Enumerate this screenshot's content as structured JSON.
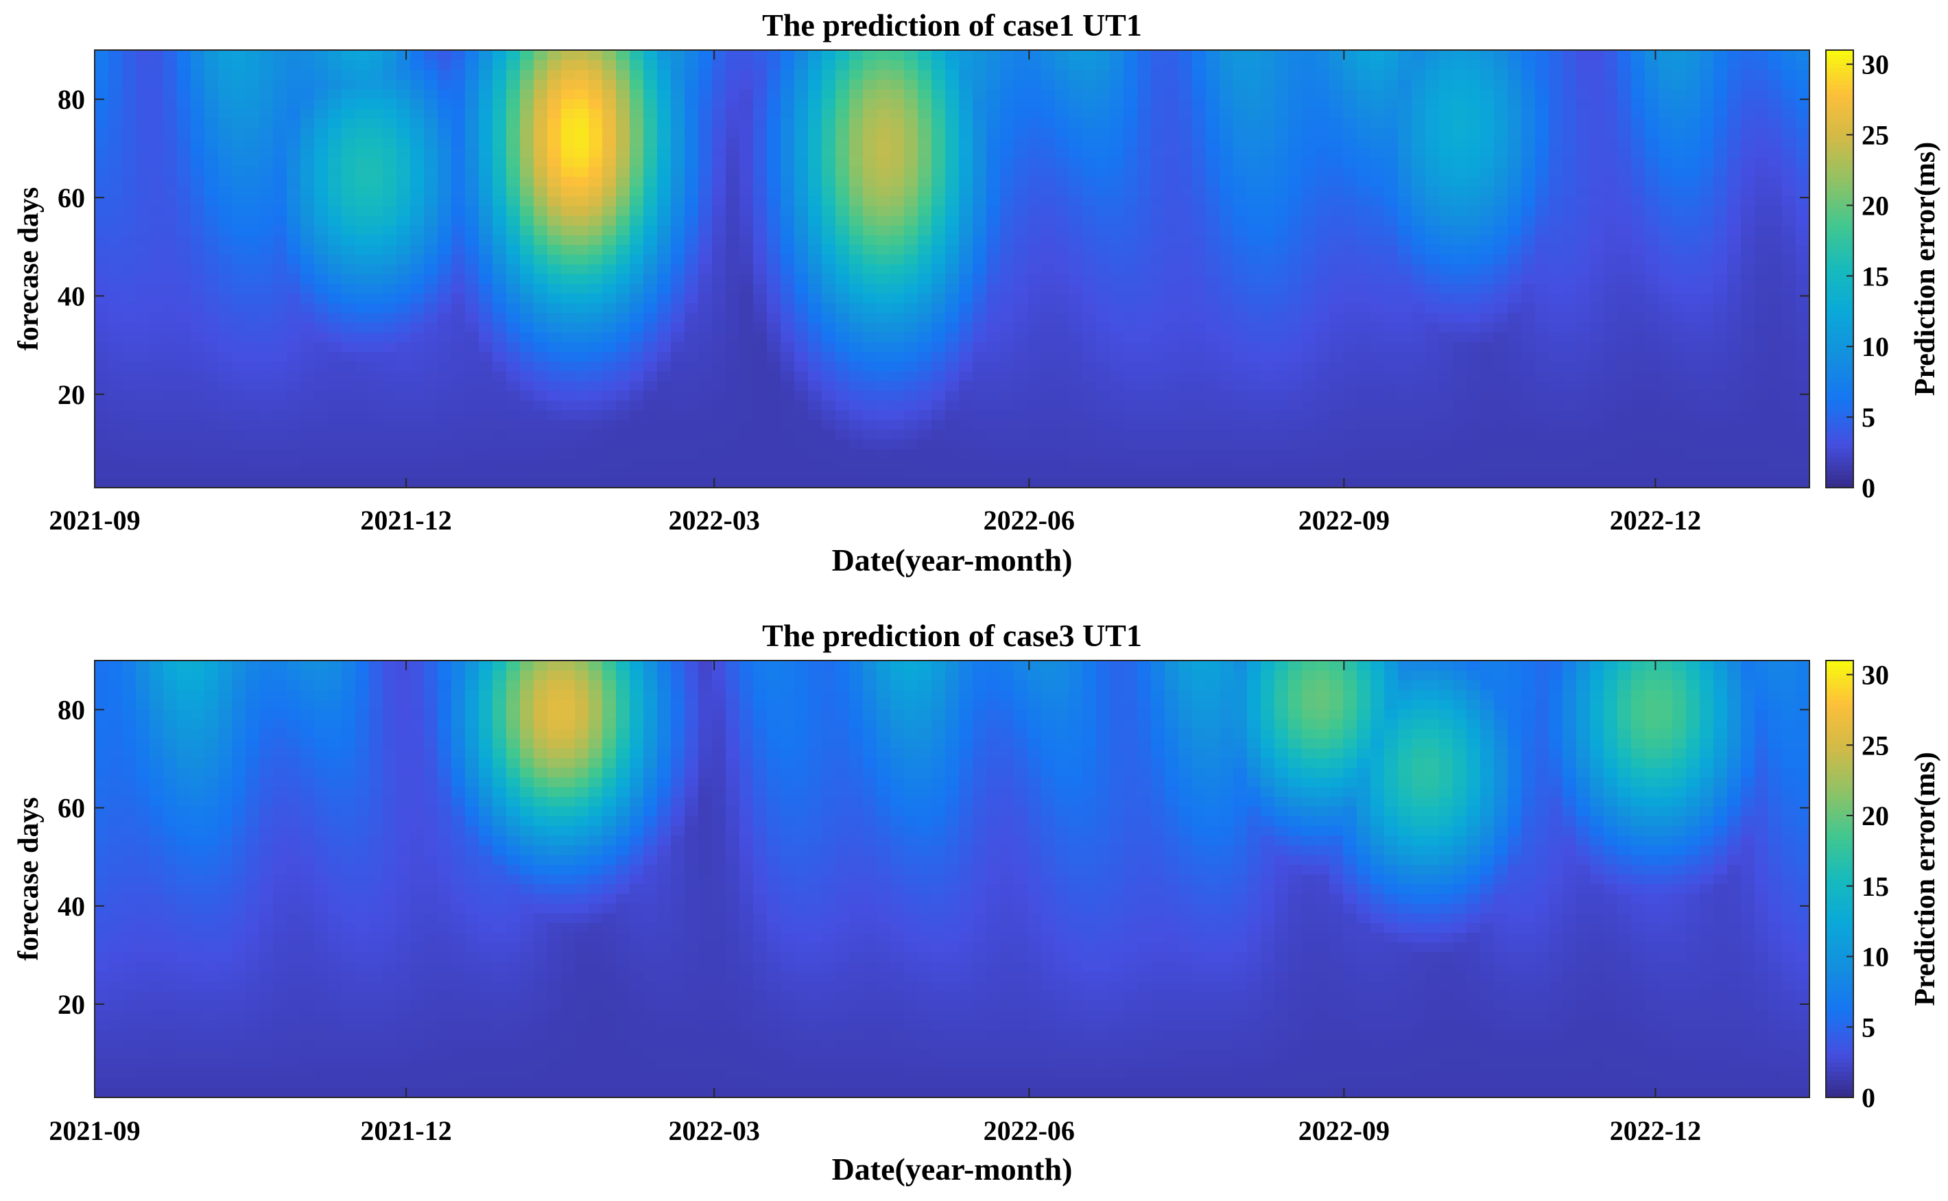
{
  "chart_data": [
    {
      "type": "heatmap",
      "title": "The prediction of case1 UT1",
      "xlabel": "Date(year-month)",
      "ylabel": "forecase days",
      "xticks": [
        "2021-09",
        "2021-12",
        "2022-03",
        "2022-06",
        "2022-09",
        "2022-12"
      ],
      "xrange": [
        "2021-09-01",
        "2023-01-15"
      ],
      "yticks": [
        20,
        40,
        60,
        80
      ],
      "ylim": [
        1,
        90
      ],
      "colorbar": {
        "label": "Prediction error(ms)",
        "ticks": [
          0,
          5,
          10,
          15,
          20,
          25,
          30
        ],
        "clim": [
          0,
          31
        ],
        "colormap": "parula"
      },
      "hotspots": [
        {
          "x_date": "2022-01-20",
          "day_start": 55,
          "day_end": 90,
          "error_ms": 30
        },
        {
          "x_date": "2022-04-20",
          "day_start": 50,
          "day_end": 90,
          "error_ms": 24
        },
        {
          "x_date": "2021-11-20",
          "day_start": 55,
          "day_end": 75,
          "error_ms": 16
        },
        {
          "x_date": "2022-10-05",
          "day_start": 60,
          "day_end": 90,
          "error_ms": 13
        }
      ]
    },
    {
      "type": "heatmap",
      "title": "The prediction of case3 UT1",
      "xlabel": "Date(year-month)",
      "ylabel": "forecase days",
      "xticks": [
        "2021-09",
        "2021-12",
        "2022-03",
        "2022-06",
        "2022-09",
        "2022-12"
      ],
      "xrange": [
        "2021-09-01",
        "2023-01-15"
      ],
      "yticks": [
        20,
        40,
        60,
        80
      ],
      "ylim": [
        1,
        90
      ],
      "colorbar": {
        "label": "Prediction error(ms)",
        "ticks": [
          0,
          5,
          10,
          15,
          20,
          25,
          30
        ],
        "clim": [
          0,
          31
        ],
        "colormap": "parula"
      },
      "hotspots": [
        {
          "x_date": "2022-01-15",
          "day_start": 70,
          "day_end": 90,
          "error_ms": 26
        },
        {
          "x_date": "2022-08-25",
          "day_start": 75,
          "day_end": 90,
          "error_ms": 20
        },
        {
          "x_date": "2022-12-01",
          "day_start": 70,
          "day_end": 90,
          "error_ms": 19
        },
        {
          "x_date": "2022-09-25",
          "day_start": 60,
          "day_end": 75,
          "error_ms": 17
        }
      ]
    }
  ]
}
